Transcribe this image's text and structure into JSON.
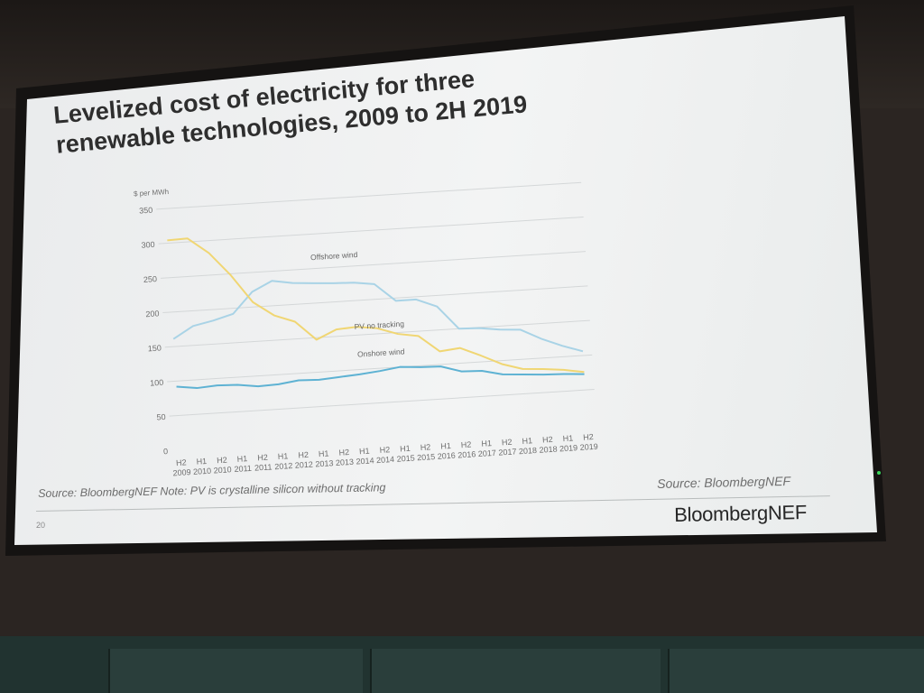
{
  "slide": {
    "title_line1": "Levelized cost of electricity for three",
    "title_line2": "renewable technologies, 2009 to 2H 2019",
    "note": "Source: BloombergNEF Note: PV is crystalline silicon without tracking",
    "source_right": "Source: BloombergNEF",
    "page_number": "20",
    "logo": "BloombergNEF"
  },
  "colors": {
    "offshore_wind": "#a9d3e6",
    "pv_no_tracking": "#f0d673",
    "onshore_wind": "#5eb2d3",
    "gridline": "#d4d7d8",
    "axis_text": "#6f6f6f"
  },
  "chart_data": {
    "type": "line",
    "ylabel": "$ per MWh",
    "ylim": [
      0,
      350
    ],
    "yticks": [
      0,
      50,
      100,
      150,
      200,
      250,
      300,
      350
    ],
    "grid": true,
    "categories": [
      [
        "H2",
        "2009"
      ],
      [
        "H1",
        "2010"
      ],
      [
        "H2",
        "2010"
      ],
      [
        "H1",
        "2011"
      ],
      [
        "H2",
        "2011"
      ],
      [
        "H1",
        "2012"
      ],
      [
        "H2",
        "2012"
      ],
      [
        "H1",
        "2013"
      ],
      [
        "H2",
        "2013"
      ],
      [
        "H1",
        "2014"
      ],
      [
        "H2",
        "2014"
      ],
      [
        "H1",
        "2015"
      ],
      [
        "H2",
        "2015"
      ],
      [
        "H1",
        "2016"
      ],
      [
        "H2",
        "2016"
      ],
      [
        "H1",
        "2017"
      ],
      [
        "H2",
        "2017"
      ],
      [
        "H1",
        "2018"
      ],
      [
        "H2",
        "2018"
      ],
      [
        "H1",
        "2019"
      ],
      [
        "H2",
        "2019"
      ]
    ],
    "series": [
      {
        "name": "Offshore wind",
        "color_key": "offshore_wind",
        "values": [
          161,
          178,
          184,
          192,
          222,
          236,
          231,
          229,
          227,
          226,
          222,
          196,
          196,
          184,
          150,
          149,
          145,
          143,
          128,
          116,
          106
        ]
      },
      {
        "name": "PV no tracking",
        "color_key": "pv_no_tracking",
        "values": [
          304,
          305,
          282,
          248,
          207,
          186,
          175,
          147,
          160,
          162,
          158,
          148,
          143,
          119,
          122,
          109,
          95,
          86,
          84,
          81,
          76
        ]
      },
      {
        "name": "Onshore wind",
        "color_key": "onshore_wind",
        "values": [
          92,
          88,
          90,
          89,
          85,
          86,
          90,
          89,
          91,
          93,
          96,
          100,
          98,
          97,
          88,
          87,
          80,
          78,
          76,
          75,
          73
        ]
      }
    ]
  }
}
